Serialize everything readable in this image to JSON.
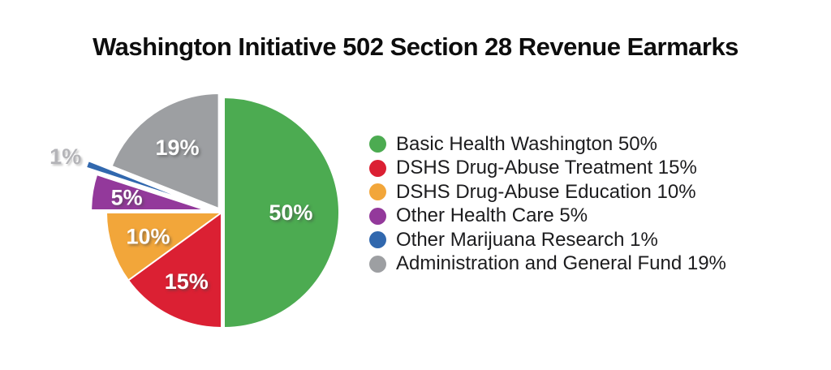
{
  "title": "Washington Initiative 502 Section 28 Revenue Earmarks",
  "chart_data": {
    "type": "pie",
    "title": "Washington Initiative 502 Section 28 Revenue Earmarks",
    "unit": "%",
    "start_angle_deg": 0,
    "direction": "clockwise",
    "legend_position": "right",
    "center": [
      273,
      262
    ],
    "radius": 142,
    "slices": [
      {
        "label": "Basic Health Washington",
        "value": 50,
        "pct_label": "50%",
        "color": "#4CAB51",
        "explode": 3,
        "label_r": 0.58
      },
      {
        "label": "DSHS Drug-Abuse Treatment",
        "value": 15,
        "pct_label": "15%",
        "color": "#DB2033",
        "explode": 0,
        "label_r": 0.67
      },
      {
        "label": "DSHS Drug-Abuse Education",
        "value": 10,
        "pct_label": "10%",
        "color": "#F2A63A",
        "explode": 0,
        "label_r": 0.67
      },
      {
        "label": "Other Health Care",
        "value": 5,
        "pct_label": "5%",
        "color": "#93399B",
        "explode": 19,
        "label_r": 0.7
      },
      {
        "label": "Other Marijuana Research",
        "value": 1,
        "pct_label": "1%",
        "color": "#3168AE",
        "explode": 34,
        "label_r": 1.2,
        "label_outside": true
      },
      {
        "label": "Administration and General Fund",
        "value": 19,
        "pct_label": "19%",
        "color": "#9D9FA2",
        "explode": 6,
        "label_r": 0.64
      }
    ]
  },
  "legend": {
    "items": [
      {
        "label": "Basic Health Washington 50%",
        "color": "#4CAB51"
      },
      {
        "label": "DSHS Drug-Abuse Treatment 15%",
        "color": "#DB2033"
      },
      {
        "label": "DSHS Drug-Abuse Education 10%",
        "color": "#F2A63A"
      },
      {
        "label": "Other Health Care 5%",
        "color": "#93399B"
      },
      {
        "label": "Other Marijuana Research 1%",
        "color": "#3168AE"
      },
      {
        "label": "Administration and General Fund 19%",
        "color": "#9D9FA2"
      }
    ]
  }
}
